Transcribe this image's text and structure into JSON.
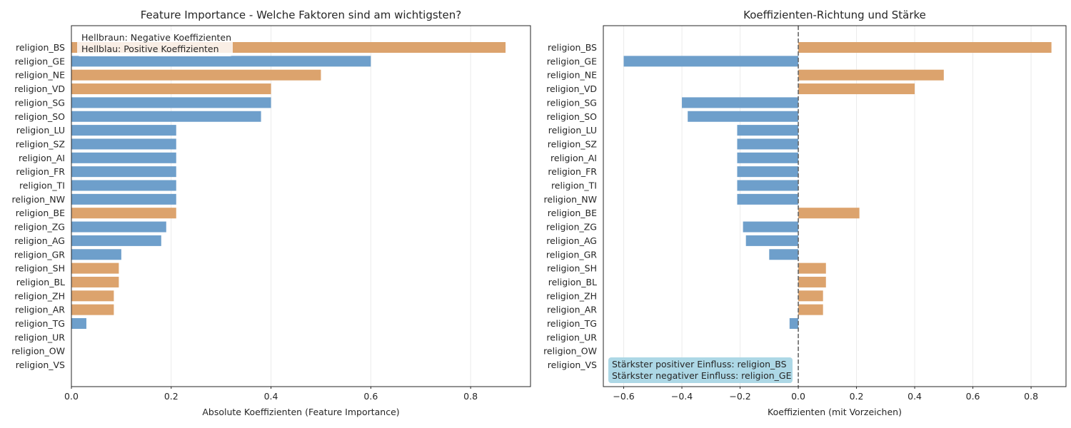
{
  "colors": {
    "positive": "#dca36d",
    "negative": "#6e9fcb",
    "annotation_box": "#add8e6",
    "legend_box": "#ffffff",
    "frame": "#262626",
    "grid": "#ebebeb",
    "zero_line": "#666666"
  },
  "chart_data": [
    {
      "type": "bar",
      "orientation": "horizontal",
      "title": "Feature Importance - Welche Faktoren sind am wichtigsten?",
      "xlabel": "Absolute Koeffizienten (Feature Importance)",
      "ylabel": "",
      "xlim": [
        0,
        0.92
      ],
      "xticks": [
        0,
        0.2,
        0.4,
        0.6,
        0.8
      ],
      "xtick_labels": [
        "0.0",
        "0.2",
        "0.4",
        "0.6",
        "0.8"
      ],
      "grid": "vertical",
      "categories": [
        "religion_BS",
        "religion_GE",
        "religion_NE",
        "religion_VD",
        "religion_SG",
        "religion_SO",
        "religion_LU",
        "religion_SZ",
        "religion_AI",
        "religion_FR",
        "religion_TI",
        "religion_NW",
        "religion_BE",
        "religion_ZG",
        "religion_AG",
        "religion_GR",
        "religion_SH",
        "religion_BL",
        "religion_ZH",
        "religion_AR",
        "religion_TG",
        "religion_UR",
        "religion_OW",
        "religion_VS"
      ],
      "values": [
        0.87,
        0.6,
        0.5,
        0.4,
        0.4,
        0.38,
        0.21,
        0.21,
        0.21,
        0.21,
        0.21,
        0.21,
        0.21,
        0.19,
        0.18,
        0.1,
        0.095,
        0.095,
        0.085,
        0.085,
        0.03,
        0,
        0,
        0
      ],
      "sign": [
        "positive",
        "negative",
        "positive",
        "positive",
        "negative",
        "negative",
        "negative",
        "negative",
        "negative",
        "negative",
        "negative",
        "negative",
        "positive",
        "negative",
        "negative",
        "negative",
        "positive",
        "positive",
        "positive",
        "positive",
        "negative",
        "negative",
        "negative",
        "negative"
      ],
      "legend": {
        "placement": "top-left",
        "lines": [
          "Hellbraun: Negative Koeffizienten",
          "Hellblau: Positive Koeffizienten"
        ]
      }
    },
    {
      "type": "bar",
      "orientation": "horizontal",
      "title": "Koeffizienten-Richtung und Stärke",
      "xlabel": "Koeffizienten (mit Vorzeichen)",
      "ylabel": "",
      "xlim": [
        -0.67,
        0.92
      ],
      "xticks": [
        -0.6,
        -0.4,
        -0.2,
        0,
        0.2,
        0.4,
        0.6,
        0.8
      ],
      "xtick_labels": [
        "−0.6",
        "−0.4",
        "−0.2",
        "0.0",
        "0.2",
        "0.4",
        "0.6",
        "0.8"
      ],
      "grid": "vertical",
      "zero_line": true,
      "categories": [
        "religion_BS",
        "religion_GE",
        "religion_NE",
        "religion_VD",
        "religion_SG",
        "religion_SO",
        "religion_LU",
        "religion_SZ",
        "religion_AI",
        "religion_FR",
        "religion_TI",
        "religion_NW",
        "religion_BE",
        "religion_ZG",
        "religion_AG",
        "religion_GR",
        "religion_SH",
        "religion_BL",
        "religion_ZH",
        "religion_AR",
        "religion_TG",
        "religion_UR",
        "religion_OW",
        "religion_VS"
      ],
      "values": [
        0.87,
        -0.6,
        0.5,
        0.4,
        -0.4,
        -0.38,
        -0.21,
        -0.21,
        -0.21,
        -0.21,
        -0.21,
        -0.21,
        0.21,
        -0.19,
        -0.18,
        -0.1,
        0.095,
        0.095,
        0.085,
        0.085,
        -0.03,
        0,
        0,
        0
      ],
      "annotation": {
        "placement": "bottom-left",
        "lines": [
          "Stärkster positiver Einfluss: religion_BS",
          "Stärkster negativer Einfluss: religion_GE"
        ]
      }
    }
  ]
}
